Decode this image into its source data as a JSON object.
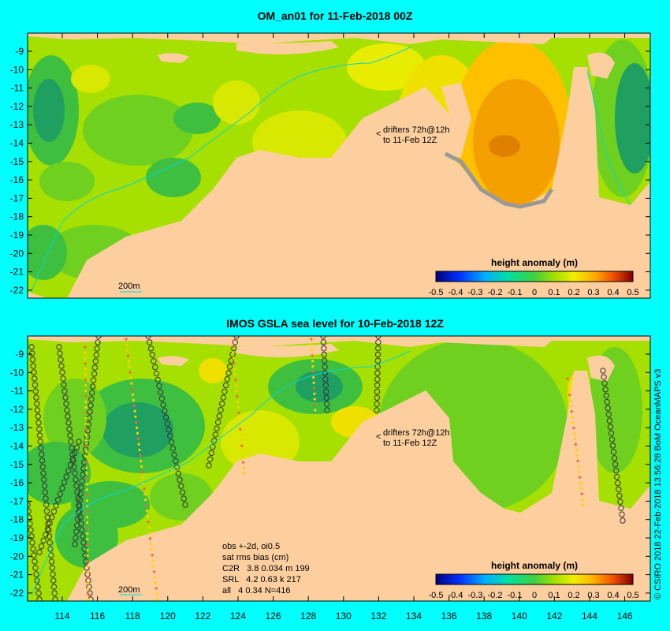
{
  "panels": [
    {
      "title": "OM_an01 for 11-Feb-2018 00Z",
      "drifters_note": [
        "drifters 72h@12h",
        "to 11-Feb 12Z"
      ],
      "depth_label": "200m",
      "colorbar_title": "height anomaly (m)",
      "colorbar_ticks": [
        "-0.5",
        "-0.4",
        "-0.3",
        "-0.2",
        "-0.1",
        "0",
        "0.1",
        "0.2",
        "0.3",
        "0.4",
        "0.5"
      ],
      "lat_ticks": [
        "-9",
        "-10",
        "-11",
        "-12",
        "-13",
        "-14",
        "-15",
        "-16",
        "-17",
        "-18",
        "-19",
        "-20",
        "-21",
        "-22"
      ]
    },
    {
      "title": "IMOS GSLA sea level  for 10-Feb-2018 12Z",
      "drifters_note": [
        "drifters 72h@12h",
        "to 11-Feb 12Z"
      ],
      "depth_label": "200m",
      "colorbar_title": "height anomaly (m)",
      "colorbar_ticks": [
        "-0.5",
        "-0.4",
        "-0.3",
        "-0.2",
        "-0.1",
        "0",
        "0.1",
        "0.2",
        "0.3",
        "0.4",
        "0.5"
      ],
      "lat_ticks": [
        "-9",
        "-10",
        "-11",
        "-12",
        "-13",
        "-14",
        "-15",
        "-16",
        "-17",
        "-18",
        "-19",
        "-20",
        "-21",
        "-22"
      ],
      "stats": [
        "obs +-2d, oi0.5",
        "sat rms bias (cm)",
        "C2R   3.8 0.034 m 199",
        "SRL   4.2 0.63 k 217",
        "all   4 0.34 N=416"
      ]
    }
  ],
  "lon_ticks": [
    "114",
    "116",
    "118",
    "120",
    "122",
    "124",
    "126",
    "128",
    "130",
    "132",
    "134",
    "136",
    "138",
    "140",
    "142",
    "144",
    "146"
  ],
  "credit": "© CSIRO 2018  22-Feb-2018 13:56:28 BoM OceanMAPS v3",
  "colors": {
    "background": "#00ffff",
    "land": "#fdcf9f",
    "ocean_base": "#a6e000",
    "coast_shelf": "#999999"
  }
}
